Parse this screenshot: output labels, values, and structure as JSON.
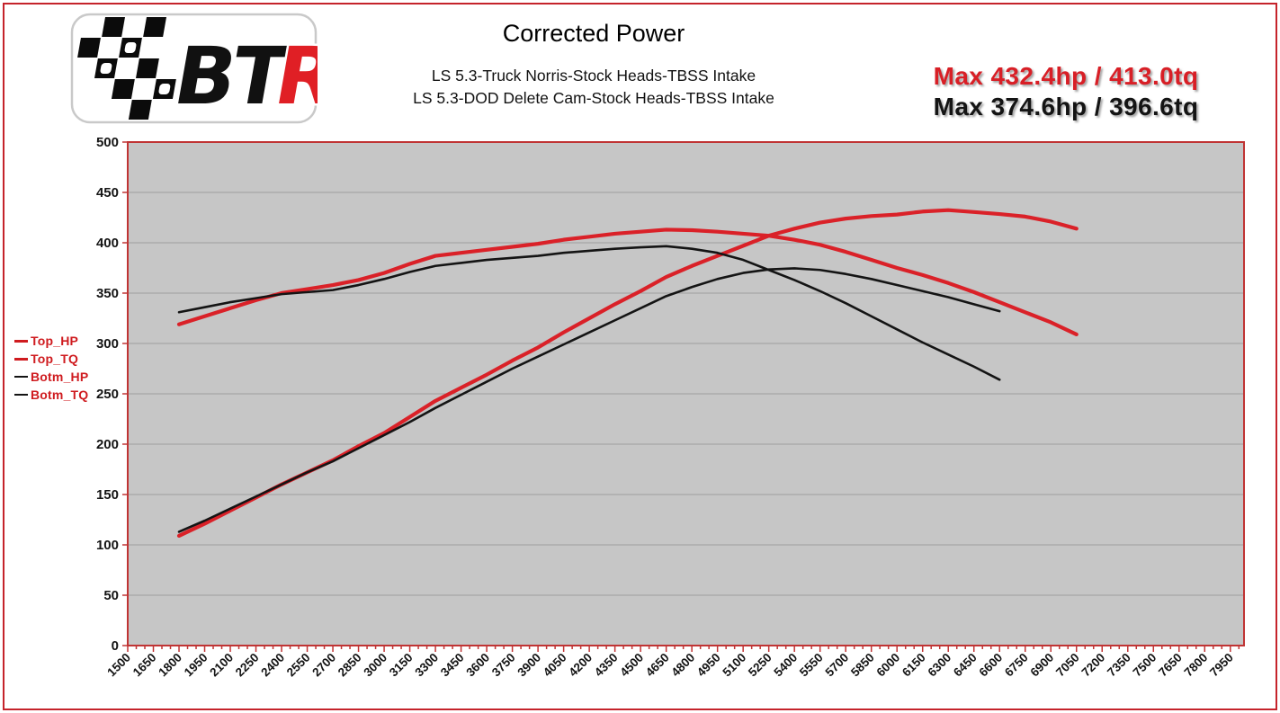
{
  "page": {
    "background": "#ffffff",
    "frame_color": "#c5232b"
  },
  "logo": {
    "text_bt": "BT",
    "text_r": "R",
    "description": "BTR checkered-flag sticker logo",
    "letter_color_bt": "#111111",
    "letter_color_r": "#e01f25"
  },
  "header": {
    "title": "Corrected Power",
    "subtitle_line1": "LS 5.3-Truck Norris-Stock Heads-TBSS Intake",
    "subtitle_line2": "LS 5.3-DOD Delete Cam-Stock Heads-TBSS Intake",
    "max_line1": "Max 432.4hp / 413.0tq",
    "max_line2": "Max 374.6hp / 396.6tq",
    "max_line1_color": "#d81f26",
    "max_line2_color": "#141414"
  },
  "legend": {
    "items": [
      {
        "label": "Top_HP",
        "swatch_color": "#cf1b1f",
        "text_color": "#cf1b1f"
      },
      {
        "label": "Top_TQ",
        "swatch_color": "#cf1b1f",
        "text_color": "#cf1b1f"
      },
      {
        "label": "Botm_HP",
        "swatch_color": "#141414",
        "text_color": "#cf1b1f"
      },
      {
        "label": "Botm_TQ",
        "swatch_color": "#141414",
        "text_color": "#cf1b1f"
      }
    ]
  },
  "chart_data": {
    "type": "line",
    "title": "Corrected Power",
    "plot_bg": "#c6c6c6",
    "grid_color": "#9e9e9e",
    "axis_color": "#c03434",
    "x_axis": {
      "unit": "RPM",
      "min": 1500,
      "max": 7950,
      "tick_step": 150,
      "minor_tick_step": 50,
      "labels_rotated_deg": -45,
      "tick_labels": [
        "1500",
        "1650",
        "1800",
        "1950",
        "2100",
        "2250",
        "2400",
        "2550",
        "2700",
        "2850",
        "3000",
        "3150",
        "3300",
        "3450",
        "3600",
        "3750",
        "3900",
        "4050",
        "4200",
        "4350",
        "4500",
        "4650",
        "4800",
        "4950",
        "5100",
        "5250",
        "5400",
        "5550",
        "5700",
        "5850",
        "6000",
        "6150",
        "6300",
        "6450",
        "6600",
        "6750",
        "6900",
        "7050",
        "7200",
        "7350",
        "7500",
        "7650",
        "7800",
        "7950"
      ]
    },
    "y_axis": {
      "unit": "hp / lb-ft",
      "min": 0,
      "max": 500,
      "tick_step": 50,
      "grid": true,
      "tick_labels": [
        "0",
        "50",
        "100",
        "150",
        "200",
        "250",
        "300",
        "350",
        "400",
        "450",
        "500"
      ]
    },
    "legend_position": "left",
    "series": [
      {
        "name": "Top_HP",
        "max_label": "432.4 hp",
        "color": "#da2128",
        "stroke_width": 4.2,
        "x_start": 1800,
        "x_step": 150,
        "values": [
          109,
          121,
          134,
          147,
          160,
          172,
          184,
          198,
          211,
          227,
          243,
          256,
          269,
          283,
          296,
          311,
          325,
          339,
          352,
          366,
          377,
          387,
          397,
          407,
          414,
          420,
          424,
          426.5,
          428,
          431,
          432.4,
          430.5,
          428.5,
          426,
          421,
          414
        ]
      },
      {
        "name": "Top_TQ",
        "max_label": "413.0 tq",
        "color": "#da2128",
        "stroke_width": 4.2,
        "x_start": 1800,
        "x_step": 150,
        "values": [
          319,
          327,
          335,
          343,
          350,
          354,
          358,
          363,
          370,
          379,
          387,
          390,
          393,
          396,
          399,
          403,
          406,
          409,
          411,
          413,
          412.5,
          411,
          409,
          407,
          403,
          398,
          391,
          383,
          375,
          368,
          360,
          351,
          341,
          331,
          321,
          309
        ]
      },
      {
        "name": "Botm_HP",
        "max_label": "374.6 hp",
        "color": "#141414",
        "stroke_width": 2.6,
        "x_start": 1800,
        "x_step": 150,
        "values": [
          113,
          124,
          136,
          148,
          160,
          172,
          183,
          196,
          209,
          222,
          236,
          249,
          262,
          275,
          287,
          299,
          311,
          323,
          335,
          347,
          356,
          364,
          370,
          373.5,
          374.6,
          373,
          369,
          364,
          358,
          352,
          346,
          339,
          332
        ]
      },
      {
        "name": "Botm_TQ",
        "max_label": "396.6 tq",
        "color": "#141414",
        "stroke_width": 2.6,
        "x_start": 1800,
        "x_step": 150,
        "values": [
          331,
          336,
          341,
          345,
          349,
          351,
          353,
          358,
          364,
          371,
          377,
          380,
          383,
          385,
          387,
          390,
          392,
          394,
          395.5,
          396.6,
          394,
          390,
          383,
          373,
          363,
          352,
          340,
          327,
          314,
          301,
          289,
          277,
          264
        ]
      }
    ]
  }
}
